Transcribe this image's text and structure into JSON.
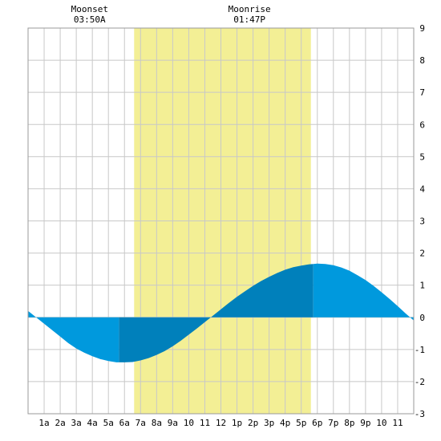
{
  "chart_data": {
    "type": "area",
    "title": "",
    "xlabel": "",
    "ylabel": "",
    "x_range_hours": [
      0,
      24
    ],
    "ylim": [
      -3,
      9
    ],
    "x_tick_labels": [
      "1a",
      "2a",
      "3a",
      "4a",
      "5a",
      "6a",
      "7a",
      "8a",
      "9a",
      "10",
      "11",
      "12",
      "1p",
      "2p",
      "3p",
      "4p",
      "5p",
      "6p",
      "7p",
      "8p",
      "9p",
      "10",
      "11"
    ],
    "y_tick_labels": [
      "-3",
      "-2",
      "-1",
      "0",
      "1",
      "2",
      "3",
      "4",
      "5",
      "6",
      "7",
      "8",
      "9"
    ],
    "grid": true,
    "daylight_hours": [
      6.6,
      17.6
    ],
    "events": [
      {
        "label": "Moonset",
        "time": "03:50A",
        "hour": 3.83
      },
      {
        "label": "Moonrise",
        "time": "01:47P",
        "hour": 13.78
      }
    ],
    "series": [
      {
        "x": [
          0,
          0.5,
          1,
          1.5,
          2,
          2.5,
          3,
          3.5,
          4,
          4.5,
          5,
          5.5,
          6,
          6.5,
          7,
          7.5,
          8,
          8.5,
          9,
          9.5,
          10,
          10.5,
          11,
          11.5,
          12,
          12.5,
          13,
          13.5,
          14,
          14.5,
          15,
          15.5,
          16,
          16.5,
          17,
          17.5,
          18,
          18.5,
          19,
          19.5,
          20,
          20.5,
          21,
          21.5,
          22,
          22.5,
          23,
          23.5,
          24
        ],
        "values": [
          0.2,
          0.0,
          -0.2,
          -0.4,
          -0.6,
          -0.8,
          -0.97,
          -1.1,
          -1.21,
          -1.3,
          -1.36,
          -1.4,
          -1.4,
          -1.39,
          -1.34,
          -1.27,
          -1.17,
          -1.05,
          -0.9,
          -0.73,
          -0.54,
          -0.35,
          -0.15,
          0.05,
          0.25,
          0.45,
          0.64,
          0.81,
          0.98,
          1.13,
          1.26,
          1.38,
          1.48,
          1.56,
          1.61,
          1.65,
          1.67,
          1.66,
          1.62,
          1.55,
          1.45,
          1.31,
          1.16,
          0.98,
          0.78,
          0.57,
          0.35,
          0.12,
          -0.1
        ],
        "segment_breaks_hours": [
          5.65,
          17.75
        ],
        "colors": [
          "#0099dd",
          "#0080bb",
          "#0080bb",
          "#0099dd"
        ]
      }
    ],
    "colors": {
      "daylight": "#f3ef95",
      "grid": "#c8c8c8",
      "tide_light": "#0099dd",
      "tide_dark": "#0080bb"
    }
  }
}
